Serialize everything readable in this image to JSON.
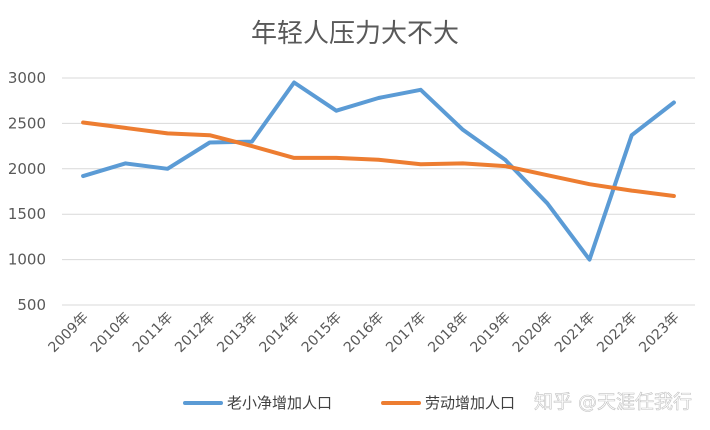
{
  "chart_data": {
    "type": "line",
    "title": "年轻人压力大不大",
    "categories": [
      "2009年",
      "2010年",
      "2011年",
      "2012年",
      "2013年",
      "2014年",
      "2015年",
      "2016年",
      "2017年",
      "2018年",
      "2019年",
      "2020年",
      "2021年",
      "2022年",
      "2023年"
    ],
    "yticks": [
      "500",
      "1000",
      "1500",
      "2000",
      "2500",
      "3000"
    ],
    "ylim": [
      500,
      3000
    ],
    "grid": true,
    "legend_position": "bottom",
    "series": [
      {
        "name": "老小净增加人口",
        "color": "#5b9bd5",
        "values": [
          1920,
          2060,
          2000,
          2290,
          2300,
          2950,
          2640,
          2780,
          2870,
          2430,
          2100,
          1620,
          1000,
          2370,
          2730
        ]
      },
      {
        "name": "劳动增加人口",
        "color": "#ed7d31",
        "values": [
          2510,
          2450,
          2390,
          2370,
          2250,
          2120,
          2120,
          2100,
          2050,
          2060,
          2030,
          1930,
          1830,
          1760,
          1700
        ]
      }
    ]
  },
  "watermark": {
    "text": "知乎 @天涯任我行"
  }
}
